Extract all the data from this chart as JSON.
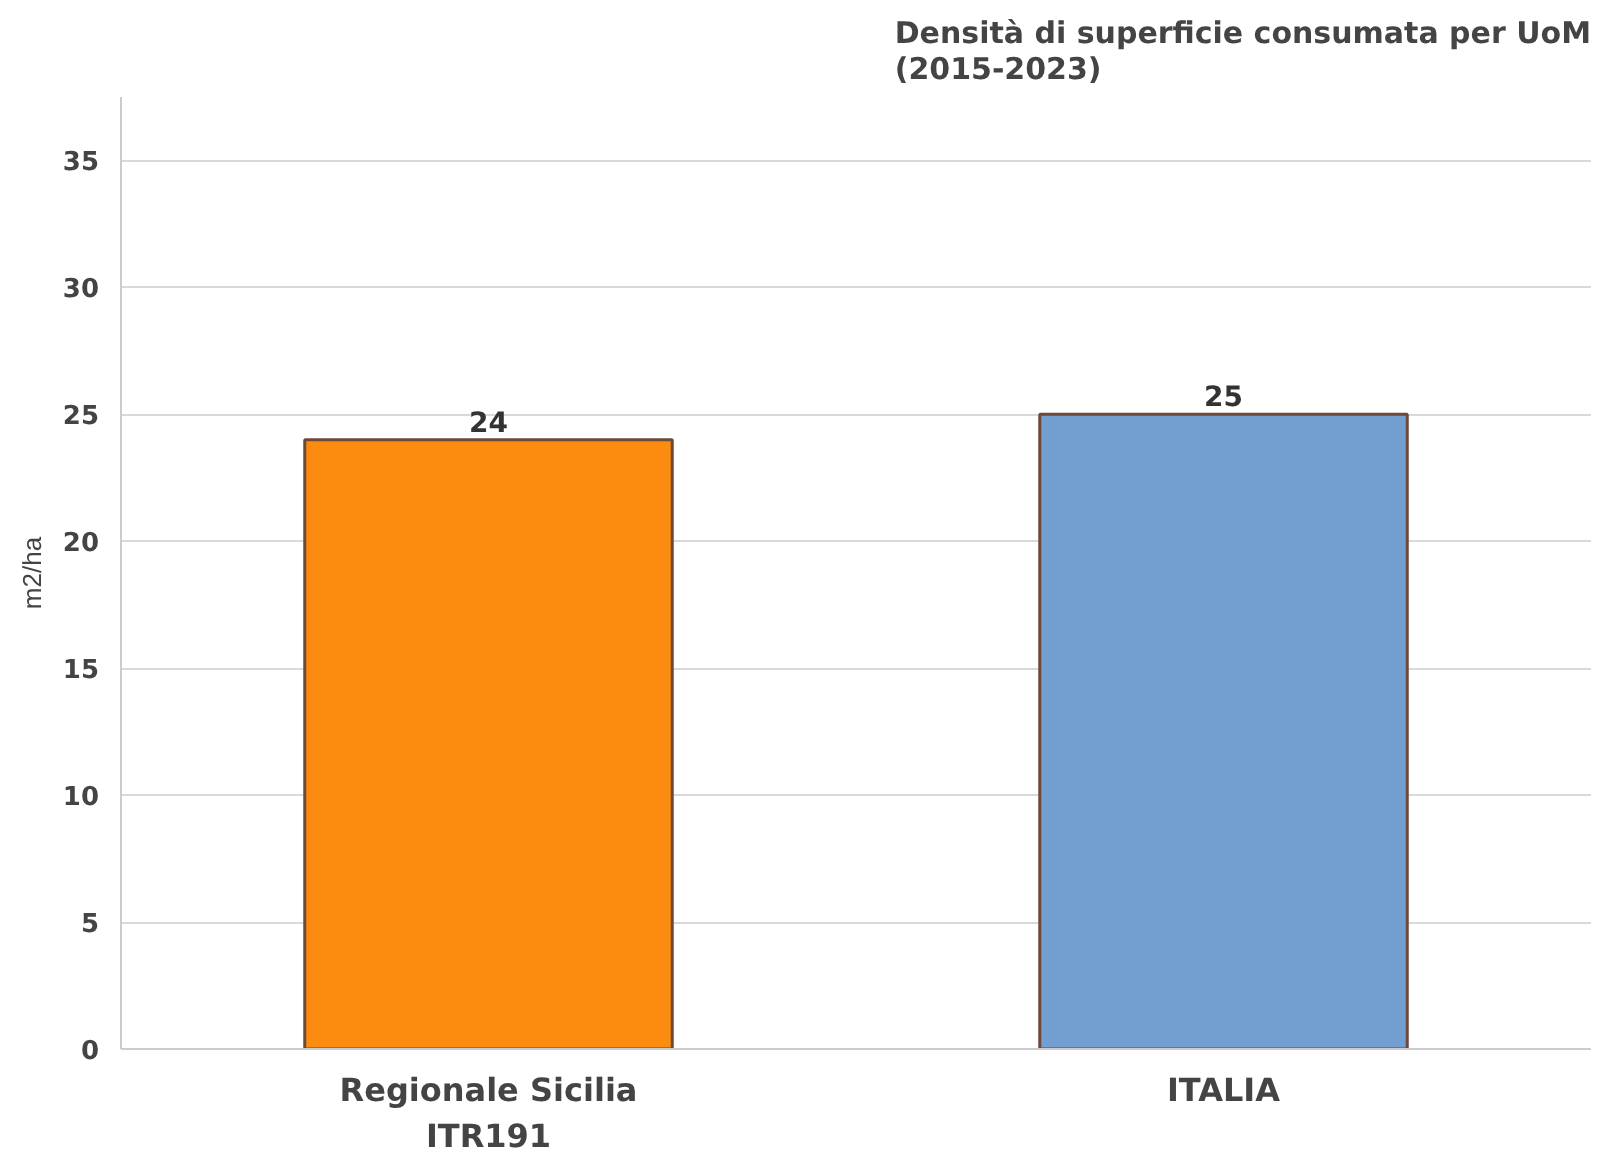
{
  "chart_data": {
    "type": "bar",
    "title": "Densità di superficie consumata per UoM\n(2015-2023)",
    "ylabel": "m2/ha",
    "categories": [
      "Regionale Sicilia\nITR191",
      "ITALIA"
    ],
    "values": [
      24,
      25
    ],
    "colors": [
      "#fb8c0f",
      "#729fcf"
    ],
    "ylim": [
      0,
      37.5
    ],
    "yticks": [
      0,
      5,
      10,
      15,
      20,
      25,
      30,
      35
    ],
    "grid": "y",
    "data_labels": true
  }
}
